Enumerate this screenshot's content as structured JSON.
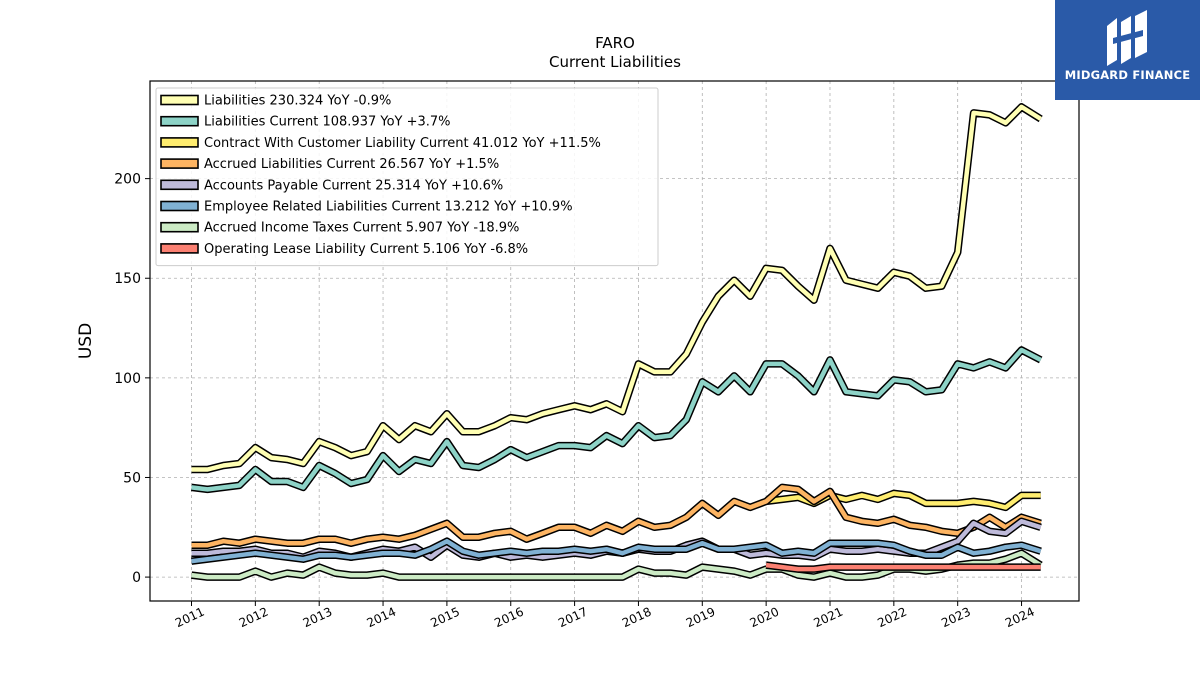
{
  "chart_data": {
    "type": "line",
    "title": "FARO",
    "subtitle": "Current  Liabilities",
    "ylabel": "USD",
    "xlabel": "",
    "ylim": [
      -12,
      249
    ],
    "xlim": [
      2010.35,
      2024.9
    ],
    "grid": true,
    "legend_position": "top-left",
    "yticks": [
      0,
      50,
      100,
      150,
      200
    ],
    "xticks": [
      "2011",
      "2012",
      "2013",
      "2014",
      "2015",
      "2016",
      "2017",
      "2018",
      "2019",
      "2020",
      "2021",
      "2022",
      "2023",
      "2024"
    ],
    "series": [
      {
        "name": "Liabilities  230.324 YoY -0.9%",
        "color": "#ffffb3",
        "x": [
          2011.0,
          2011.25,
          2011.5,
          2011.75,
          2012.0,
          2012.25,
          2012.5,
          2012.75,
          2013.0,
          2013.25,
          2013.5,
          2013.75,
          2014.0,
          2014.25,
          2014.5,
          2014.75,
          2015.0,
          2015.25,
          2015.5,
          2015.75,
          2016.0,
          2016.25,
          2016.5,
          2016.75,
          2017.0,
          2017.25,
          2017.5,
          2017.75,
          2018.0,
          2018.25,
          2018.5,
          2018.75,
          2019.0,
          2019.25,
          2019.5,
          2019.75,
          2020.0,
          2020.25,
          2020.5,
          2020.75,
          2021.0,
          2021.25,
          2021.5,
          2021.75,
          2022.0,
          2022.25,
          2022.5,
          2022.75,
          2023.0,
          2023.25,
          2023.5,
          2023.75,
          2024.0,
          2024.3
        ],
        "values": [
          54,
          54,
          56,
          57,
          65,
          60,
          59,
          57,
          68,
          65,
          61,
          63,
          76,
          69,
          76,
          73,
          82,
          73,
          73,
          76,
          80,
          79,
          82,
          84,
          86,
          84,
          87,
          83,
          107,
          103,
          103,
          112,
          128,
          141,
          149,
          141,
          155,
          154,
          146,
          139,
          165,
          149,
          147,
          145,
          153,
          151,
          145,
          146,
          163,
          233,
          232,
          228,
          236,
          230
        ]
      },
      {
        "name": "Liabilities Current  108.937 YoY +3.7%",
        "color": "#8dd3c7",
        "x": [
          2011.0,
          2011.25,
          2011.5,
          2011.75,
          2012.0,
          2012.25,
          2012.5,
          2012.75,
          2013.0,
          2013.25,
          2013.5,
          2013.75,
          2014.0,
          2014.25,
          2014.5,
          2014.75,
          2015.0,
          2015.25,
          2015.5,
          2015.75,
          2016.0,
          2016.25,
          2016.5,
          2016.75,
          2017.0,
          2017.25,
          2017.5,
          2017.75,
          2018.0,
          2018.25,
          2018.5,
          2018.75,
          2019.0,
          2019.25,
          2019.5,
          2019.75,
          2020.0,
          2020.25,
          2020.5,
          2020.75,
          2021.0,
          2021.25,
          2021.5,
          2021.75,
          2022.0,
          2022.25,
          2022.5,
          2022.75,
          2023.0,
          2023.25,
          2023.5,
          2023.75,
          2024.0,
          2024.3
        ],
        "values": [
          45,
          44,
          45,
          46,
          54,
          48,
          48,
          45,
          56,
          52,
          47,
          49,
          61,
          53,
          59,
          57,
          68,
          56,
          55,
          59,
          64,
          60,
          63,
          66,
          66,
          65,
          71,
          67,
          76,
          70,
          71,
          79,
          98,
          93,
          101,
          93,
          107,
          107,
          101,
          93,
          109,
          93,
          92,
          91,
          99,
          98,
          93,
          94,
          107,
          105,
          108,
          105,
          114,
          109
        ]
      },
      {
        "name": "Contract With Customer Liability Current  41.012 YoY +11.5%",
        "color": "#ffed6f",
        "x": [
          2020.0,
          2020.25,
          2020.5,
          2020.75,
          2021.0,
          2021.25,
          2021.5,
          2021.75,
          2022.0,
          2022.25,
          2022.5,
          2022.75,
          2023.0,
          2023.25,
          2023.5,
          2023.75,
          2024.0,
          2024.3
        ],
        "values": [
          38,
          39,
          40,
          37,
          41,
          39,
          41,
          39,
          42,
          41,
          37,
          37,
          37,
          38,
          37,
          35,
          41,
          41
        ]
      },
      {
        "name": "Accrued Liabilities Current  26.567 YoY +1.5%",
        "color": "#fdb462",
        "x": [
          2011.0,
          2011.25,
          2011.5,
          2011.75,
          2012.0,
          2012.25,
          2012.5,
          2012.75,
          2013.0,
          2013.25,
          2013.5,
          2013.75,
          2014.0,
          2014.25,
          2014.5,
          2014.75,
          2015.0,
          2015.25,
          2015.5,
          2015.75,
          2016.0,
          2016.25,
          2016.5,
          2016.75,
          2017.0,
          2017.25,
          2017.5,
          2017.75,
          2018.0,
          2018.25,
          2018.5,
          2018.75,
          2019.0,
          2019.25,
          2019.5,
          2019.75,
          2020.0,
          2020.25,
          2020.5,
          2020.75,
          2021.0,
          2021.25,
          2021.5,
          2021.75,
          2022.0,
          2022.25,
          2022.5,
          2022.75,
          2023.0,
          2023.25,
          2023.5,
          2023.75,
          2024.0,
          2024.3
        ],
        "values": [
          16,
          16,
          18,
          17,
          19,
          18,
          17,
          17,
          19,
          19,
          17,
          19,
          20,
          19,
          21,
          24,
          27,
          20,
          20,
          22,
          23,
          19,
          22,
          25,
          25,
          22,
          26,
          23,
          28,
          25,
          26,
          30,
          37,
          31,
          38,
          35,
          38,
          45,
          44,
          38,
          43,
          30,
          28,
          27,
          29,
          26,
          25,
          23,
          22,
          25,
          30,
          25,
          30,
          27
        ]
      },
      {
        "name": "Accounts Payable Current  25.314 YoY +10.6%",
        "color": "#bebada",
        "x": [
          2011.0,
          2011.25,
          2011.5,
          2011.75,
          2012.0,
          2012.25,
          2012.5,
          2012.75,
          2013.0,
          2013.25,
          2013.5,
          2013.75,
          2014.0,
          2014.25,
          2014.5,
          2014.75,
          2015.0,
          2015.25,
          2015.5,
          2015.75,
          2016.0,
          2016.25,
          2016.5,
          2016.75,
          2017.0,
          2017.25,
          2017.5,
          2017.75,
          2018.0,
          2018.25,
          2018.5,
          2018.75,
          2019.0,
          2019.25,
          2019.5,
          2019.75,
          2020.0,
          2020.25,
          2020.5,
          2020.75,
          2021.0,
          2021.25,
          2021.5,
          2021.75,
          2022.0,
          2022.25,
          2022.5,
          2022.75,
          2023.0,
          2023.25,
          2023.5,
          2023.75,
          2024.0,
          2024.3
        ],
        "values": [
          12,
          12,
          13,
          13,
          14,
          12,
          12,
          10,
          13,
          12,
          10,
          12,
          14,
          13,
          15,
          10,
          16,
          11,
          10,
          12,
          10,
          11,
          10,
          11,
          12,
          11,
          13,
          12,
          14,
          13,
          13,
          16,
          18,
          14,
          14,
          11,
          12,
          11,
          11,
          10,
          14,
          13,
          13,
          14,
          13,
          12,
          12,
          15,
          18,
          27,
          23,
          22,
          28,
          25
        ]
      },
      {
        "name": "Employee Related Liabilities Current  13.212 YoY +10.9%",
        "color": "#80b1d3",
        "x": [
          2011.0,
          2011.25,
          2011.5,
          2011.75,
          2012.0,
          2012.25,
          2012.5,
          2012.75,
          2013.0,
          2013.25,
          2013.5,
          2013.75,
          2014.0,
          2014.25,
          2014.5,
          2014.75,
          2015.0,
          2015.25,
          2015.5,
          2015.75,
          2016.0,
          2016.25,
          2016.5,
          2016.75,
          2017.0,
          2017.25,
          2017.5,
          2017.75,
          2018.0,
          2018.25,
          2018.5,
          2018.75,
          2019.0,
          2019.25,
          2019.5,
          2019.75,
          2020.0,
          2020.25,
          2020.5,
          2020.75,
          2021.0,
          2021.25,
          2021.5,
          2021.75,
          2022.0,
          2022.25,
          2022.5,
          2022.75,
          2023.0,
          2023.25,
          2023.5,
          2023.75,
          2024.0,
          2024.3
        ],
        "values": [
          8,
          9,
          10,
          11,
          12,
          11,
          10,
          9,
          11,
          11,
          10,
          11,
          12,
          12,
          11,
          14,
          18,
          13,
          11,
          12,
          13,
          12,
          13,
          13,
          14,
          13,
          14,
          12,
          15,
          14,
          14,
          14,
          17,
          14,
          14,
          15,
          16,
          12,
          13,
          12,
          17,
          17,
          17,
          17,
          16,
          13,
          11,
          11,
          15,
          12,
          13,
          15,
          16,
          13
        ]
      },
      {
        "name": "Accrued Income Taxes Current  5.907 YoY -18.9%",
        "color": "#ccebc5",
        "x": [
          2011.0,
          2011.25,
          2011.5,
          2011.75,
          2012.0,
          2012.25,
          2012.5,
          2012.75,
          2013.0,
          2013.25,
          2013.5,
          2013.75,
          2014.0,
          2014.25,
          2014.5,
          2014.75,
          2015.0,
          2015.25,
          2015.5,
          2015.75,
          2016.0,
          2016.25,
          2016.5,
          2016.75,
          2017.0,
          2017.25,
          2017.5,
          2017.75,
          2018.0,
          2018.25,
          2018.5,
          2018.75,
          2019.0,
          2019.25,
          2019.5,
          2019.75,
          2020.0,
          2020.25,
          2020.5,
          2020.75,
          2021.0,
          2021.25,
          2021.5,
          2021.75,
          2022.0,
          2022.25,
          2022.5,
          2022.75,
          2023.0,
          2023.25,
          2023.5,
          2023.75,
          2024.0,
          2024.3
        ],
        "values": [
          1,
          0,
          0,
          0,
          3,
          0,
          2,
          1,
          5,
          2,
          1,
          1,
          2,
          0,
          0,
          0,
          0,
          0,
          0,
          0,
          0,
          0,
          0,
          0,
          0,
          0,
          0,
          0,
          4,
          2,
          2,
          1,
          5,
          4,
          3,
          1,
          4,
          4,
          1,
          0,
          2,
          0,
          0,
          1,
          4,
          4,
          3,
          4,
          6,
          7,
          7,
          9,
          12,
          6
        ]
      },
      {
        "name": "Operating Lease Liability Current  5.106 YoY -6.8%",
        "color": "#fb8072",
        "x": [
          2020.0,
          2020.25,
          2020.5,
          2020.75,
          2021.0,
          2021.25,
          2021.5,
          2021.75,
          2022.0,
          2022.25,
          2022.5,
          2022.75,
          2023.0,
          2023.25,
          2023.5,
          2023.75,
          2024.0,
          2024.3
        ],
        "values": [
          6,
          5,
          4,
          4,
          5,
          5,
          5,
          5,
          5,
          5,
          5,
          5,
          5,
          5,
          5,
          5,
          5,
          5
        ]
      }
    ]
  },
  "logo": {
    "text": "MIDGARD FINANCE",
    "background": "#2a5aa8"
  }
}
